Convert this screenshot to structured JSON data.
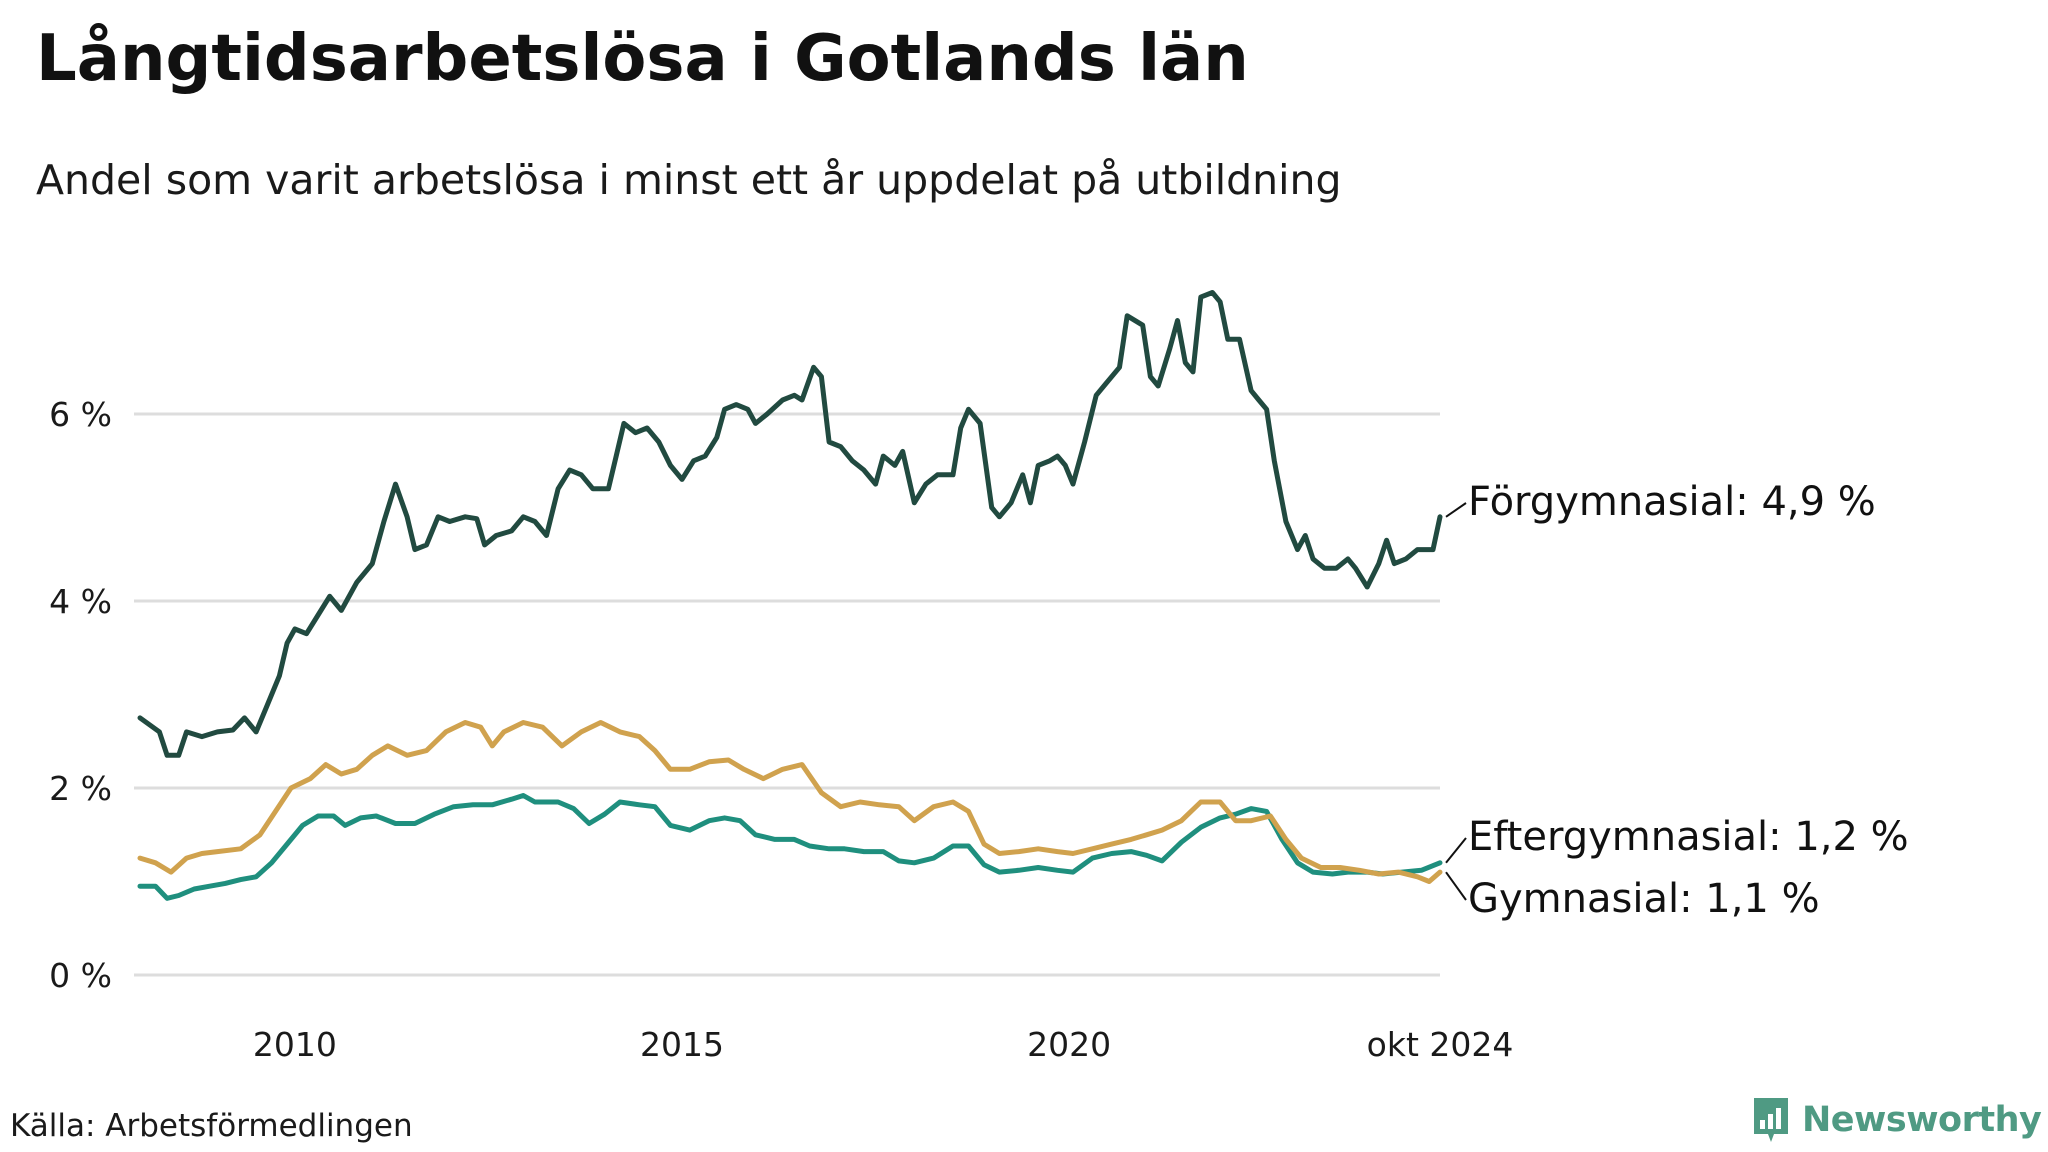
{
  "title": "Långtidsarbetslösa i Gotlands län",
  "subtitle": "Andel som varit arbetslösa i minst ett år uppdelat på utbildning",
  "source": "Källa: Arbetsförmedlingen",
  "brand": {
    "name": "Newsworthy",
    "icon": "newsworthy-logo-icon",
    "color": "#4f9a83"
  },
  "chart_data": {
    "type": "line",
    "title": "Långtidsarbetslösa i Gotlands län",
    "subtitle": "Andel som varit arbetslösa i minst ett år uppdelat på utbildning",
    "xlabel": "",
    "ylabel": "",
    "ylim": [
      0,
      7.5
    ],
    "grid": true,
    "legend": "direct labels at right end of lines",
    "y_ticks": [
      {
        "value": 0,
        "label": "0 %"
      },
      {
        "value": 2,
        "label": "2 %"
      },
      {
        "value": 4,
        "label": "4 %"
      },
      {
        "value": 6,
        "label": "6 %"
      }
    ],
    "x_ticks": [
      {
        "value": 2010,
        "label": "2010"
      },
      {
        "value": 2015,
        "label": "2015"
      },
      {
        "value": 2020,
        "label": "2020"
      },
      {
        "value": 2024.79,
        "label": "okt 2024"
      }
    ],
    "xlim": [
      2008.0,
      2024.79
    ],
    "series": [
      {
        "name": "Förgymnasial",
        "end_label": "Förgymnasial: 4,9 %",
        "color": "#214a40",
        "points": [
          [
            2008.0,
            2.75
          ],
          [
            2008.25,
            2.6
          ],
          [
            2008.35,
            2.35
          ],
          [
            2008.5,
            2.35
          ],
          [
            2008.6,
            2.6
          ],
          [
            2008.8,
            2.55
          ],
          [
            2009.0,
            2.6
          ],
          [
            2009.2,
            2.62
          ],
          [
            2009.35,
            2.75
          ],
          [
            2009.5,
            2.6
          ],
          [
            2009.65,
            2.9
          ],
          [
            2009.8,
            3.2
          ],
          [
            2009.9,
            3.55
          ],
          [
            2010.0,
            3.7
          ],
          [
            2010.15,
            3.65
          ],
          [
            2010.3,
            3.85
          ],
          [
            2010.45,
            4.05
          ],
          [
            2010.6,
            3.9
          ],
          [
            2010.8,
            4.2
          ],
          [
            2011.0,
            4.4
          ],
          [
            2011.15,
            4.85
          ],
          [
            2011.3,
            5.25
          ],
          [
            2011.45,
            4.9
          ],
          [
            2011.55,
            4.55
          ],
          [
            2011.7,
            4.6
          ],
          [
            2011.85,
            4.9
          ],
          [
            2012.0,
            4.85
          ],
          [
            2012.2,
            4.9
          ],
          [
            2012.35,
            4.88
          ],
          [
            2012.45,
            4.6
          ],
          [
            2012.6,
            4.7
          ],
          [
            2012.8,
            4.75
          ],
          [
            2012.95,
            4.9
          ],
          [
            2013.1,
            4.85
          ],
          [
            2013.25,
            4.7
          ],
          [
            2013.4,
            5.2
          ],
          [
            2013.55,
            5.4
          ],
          [
            2013.7,
            5.35
          ],
          [
            2013.85,
            5.2
          ],
          [
            2014.05,
            5.2
          ],
          [
            2014.15,
            5.55
          ],
          [
            2014.25,
            5.9
          ],
          [
            2014.4,
            5.8
          ],
          [
            2014.55,
            5.85
          ],
          [
            2014.7,
            5.7
          ],
          [
            2014.85,
            5.45
          ],
          [
            2015.0,
            5.3
          ],
          [
            2015.15,
            5.5
          ],
          [
            2015.3,
            5.55
          ],
          [
            2015.45,
            5.75
          ],
          [
            2015.55,
            6.05
          ],
          [
            2015.7,
            6.1
          ],
          [
            2015.85,
            6.05
          ],
          [
            2015.95,
            5.9
          ],
          [
            2016.1,
            6.0
          ],
          [
            2016.3,
            6.15
          ],
          [
            2016.45,
            6.2
          ],
          [
            2016.55,
            6.15
          ],
          [
            2016.7,
            6.5
          ],
          [
            2016.8,
            6.4
          ],
          [
            2016.9,
            5.7
          ],
          [
            2017.05,
            5.65
          ],
          [
            2017.2,
            5.5
          ],
          [
            2017.35,
            5.4
          ],
          [
            2017.5,
            5.25
          ],
          [
            2017.6,
            5.55
          ],
          [
            2017.75,
            5.45
          ],
          [
            2017.85,
            5.6
          ],
          [
            2018.0,
            5.05
          ],
          [
            2018.15,
            5.25
          ],
          [
            2018.3,
            5.35
          ],
          [
            2018.5,
            5.35
          ],
          [
            2018.6,
            5.85
          ],
          [
            2018.7,
            6.05
          ],
          [
            2018.85,
            5.9
          ],
          [
            2019.0,
            5.0
          ],
          [
            2019.1,
            4.9
          ],
          [
            2019.25,
            5.05
          ],
          [
            2019.4,
            5.35
          ],
          [
            2019.5,
            5.05
          ],
          [
            2019.6,
            5.45
          ],
          [
            2019.75,
            5.5
          ],
          [
            2019.85,
            5.55
          ],
          [
            2019.95,
            5.45
          ],
          [
            2020.05,
            5.25
          ],
          [
            2020.2,
            5.7
          ],
          [
            2020.35,
            6.2
          ],
          [
            2020.5,
            6.35
          ],
          [
            2020.65,
            6.5
          ],
          [
            2020.75,
            7.05
          ],
          [
            2020.95,
            6.95
          ],
          [
            2021.05,
            6.4
          ],
          [
            2021.15,
            6.3
          ],
          [
            2021.3,
            6.7
          ],
          [
            2021.4,
            7.0
          ],
          [
            2021.5,
            6.55
          ],
          [
            2021.6,
            6.45
          ],
          [
            2021.7,
            7.25
          ],
          [
            2021.85,
            7.3
          ],
          [
            2021.95,
            7.2
          ],
          [
            2022.05,
            6.8
          ],
          [
            2022.2,
            6.8
          ],
          [
            2022.35,
            6.25
          ],
          [
            2022.45,
            6.15
          ],
          [
            2022.55,
            6.05
          ],
          [
            2022.65,
            5.5
          ],
          [
            2022.8,
            4.85
          ],
          [
            2022.95,
            4.55
          ],
          [
            2023.05,
            4.7
          ],
          [
            2023.15,
            4.45
          ],
          [
            2023.3,
            4.35
          ],
          [
            2023.45,
            4.35
          ],
          [
            2023.6,
            4.45
          ],
          [
            2023.7,
            4.35
          ],
          [
            2023.85,
            4.15
          ],
          [
            2024.0,
            4.4
          ],
          [
            2024.1,
            4.65
          ],
          [
            2024.2,
            4.4
          ],
          [
            2024.35,
            4.45
          ],
          [
            2024.5,
            4.55
          ],
          [
            2024.6,
            4.55
          ],
          [
            2024.7,
            4.55
          ],
          [
            2024.79,
            4.9
          ]
        ]
      },
      {
        "name": "Eftergymnasial",
        "end_label": "Eftergymnasial: 1,2 %",
        "color": "#1f8f7e",
        "points": [
          [
            2008.0,
            0.95
          ],
          [
            2008.2,
            0.95
          ],
          [
            2008.35,
            0.82
          ],
          [
            2008.5,
            0.85
          ],
          [
            2008.7,
            0.92
          ],
          [
            2008.9,
            0.95
          ],
          [
            2009.1,
            0.98
          ],
          [
            2009.3,
            1.02
          ],
          [
            2009.5,
            1.05
          ],
          [
            2009.7,
            1.2
          ],
          [
            2009.9,
            1.4
          ],
          [
            2010.1,
            1.6
          ],
          [
            2010.3,
            1.7
          ],
          [
            2010.5,
            1.7
          ],
          [
            2010.65,
            1.6
          ],
          [
            2010.85,
            1.68
          ],
          [
            2011.05,
            1.7
          ],
          [
            2011.3,
            1.62
          ],
          [
            2011.55,
            1.62
          ],
          [
            2011.8,
            1.72
          ],
          [
            2012.05,
            1.8
          ],
          [
            2012.3,
            1.82
          ],
          [
            2012.55,
            1.82
          ],
          [
            2012.8,
            1.88
          ],
          [
            2012.95,
            1.92
          ],
          [
            2013.1,
            1.85
          ],
          [
            2013.4,
            1.85
          ],
          [
            2013.6,
            1.78
          ],
          [
            2013.8,
            1.62
          ],
          [
            2014.0,
            1.72
          ],
          [
            2014.2,
            1.85
          ],
          [
            2014.45,
            1.82
          ],
          [
            2014.65,
            1.8
          ],
          [
            2014.85,
            1.6
          ],
          [
            2015.1,
            1.55
          ],
          [
            2015.35,
            1.65
          ],
          [
            2015.55,
            1.68
          ],
          [
            2015.75,
            1.65
          ],
          [
            2015.95,
            1.5
          ],
          [
            2016.2,
            1.45
          ],
          [
            2016.45,
            1.45
          ],
          [
            2016.65,
            1.38
          ],
          [
            2016.9,
            1.35
          ],
          [
            2017.1,
            1.35
          ],
          [
            2017.35,
            1.32
          ],
          [
            2017.6,
            1.32
          ],
          [
            2017.8,
            1.22
          ],
          [
            2018.0,
            1.2
          ],
          [
            2018.25,
            1.25
          ],
          [
            2018.5,
            1.38
          ],
          [
            2018.7,
            1.38
          ],
          [
            2018.9,
            1.18
          ],
          [
            2019.1,
            1.1
          ],
          [
            2019.35,
            1.12
          ],
          [
            2019.6,
            1.15
          ],
          [
            2019.85,
            1.12
          ],
          [
            2020.05,
            1.1
          ],
          [
            2020.3,
            1.25
          ],
          [
            2020.55,
            1.3
          ],
          [
            2020.8,
            1.32
          ],
          [
            2021.0,
            1.28
          ],
          [
            2021.2,
            1.22
          ],
          [
            2021.45,
            1.42
          ],
          [
            2021.7,
            1.58
          ],
          [
            2021.95,
            1.68
          ],
          [
            2022.15,
            1.72
          ],
          [
            2022.35,
            1.78
          ],
          [
            2022.55,
            1.75
          ],
          [
            2022.75,
            1.45
          ],
          [
            2022.95,
            1.2
          ],
          [
            2023.15,
            1.1
          ],
          [
            2023.4,
            1.08
          ],
          [
            2023.6,
            1.1
          ],
          [
            2023.85,
            1.1
          ],
          [
            2024.05,
            1.08
          ],
          [
            2024.3,
            1.1
          ],
          [
            2024.55,
            1.12
          ],
          [
            2024.79,
            1.2
          ]
        ]
      },
      {
        "name": "Gymnasial",
        "end_label": "Gymnasial: 1,1 %",
        "color": "#d0a24e",
        "points": [
          [
            2008.0,
            1.25
          ],
          [
            2008.2,
            1.2
          ],
          [
            2008.4,
            1.1
          ],
          [
            2008.6,
            1.25
          ],
          [
            2008.8,
            1.3
          ],
          [
            2009.0,
            1.32
          ],
          [
            2009.3,
            1.35
          ],
          [
            2009.55,
            1.5
          ],
          [
            2009.75,
            1.75
          ],
          [
            2009.95,
            2.0
          ],
          [
            2010.2,
            2.1
          ],
          [
            2010.4,
            2.25
          ],
          [
            2010.6,
            2.15
          ],
          [
            2010.8,
            2.2
          ],
          [
            2011.0,
            2.35
          ],
          [
            2011.2,
            2.45
          ],
          [
            2011.45,
            2.35
          ],
          [
            2011.7,
            2.4
          ],
          [
            2011.95,
            2.6
          ],
          [
            2012.2,
            2.7
          ],
          [
            2012.4,
            2.65
          ],
          [
            2012.55,
            2.45
          ],
          [
            2012.7,
            2.6
          ],
          [
            2012.95,
            2.7
          ],
          [
            2013.2,
            2.65
          ],
          [
            2013.45,
            2.45
          ],
          [
            2013.7,
            2.6
          ],
          [
            2013.95,
            2.7
          ],
          [
            2014.2,
            2.6
          ],
          [
            2014.45,
            2.55
          ],
          [
            2014.65,
            2.4
          ],
          [
            2014.85,
            2.2
          ],
          [
            2015.1,
            2.2
          ],
          [
            2015.35,
            2.28
          ],
          [
            2015.6,
            2.3
          ],
          [
            2015.8,
            2.2
          ],
          [
            2016.05,
            2.1
          ],
          [
            2016.3,
            2.2
          ],
          [
            2016.55,
            2.25
          ],
          [
            2016.8,
            1.95
          ],
          [
            2017.05,
            1.8
          ],
          [
            2017.3,
            1.85
          ],
          [
            2017.55,
            1.82
          ],
          [
            2017.8,
            1.8
          ],
          [
            2018.0,
            1.65
          ],
          [
            2018.25,
            1.8
          ],
          [
            2018.5,
            1.85
          ],
          [
            2018.7,
            1.75
          ],
          [
            2018.9,
            1.4
          ],
          [
            2019.1,
            1.3
          ],
          [
            2019.35,
            1.32
          ],
          [
            2019.6,
            1.35
          ],
          [
            2019.85,
            1.32
          ],
          [
            2020.05,
            1.3
          ],
          [
            2020.3,
            1.35
          ],
          [
            2020.55,
            1.4
          ],
          [
            2020.8,
            1.45
          ],
          [
            2021.0,
            1.5
          ],
          [
            2021.2,
            1.55
          ],
          [
            2021.45,
            1.65
          ],
          [
            2021.7,
            1.85
          ],
          [
            2021.95,
            1.85
          ],
          [
            2022.15,
            1.65
          ],
          [
            2022.35,
            1.65
          ],
          [
            2022.6,
            1.7
          ],
          [
            2022.8,
            1.45
          ],
          [
            2023.0,
            1.25
          ],
          [
            2023.25,
            1.15
          ],
          [
            2023.5,
            1.15
          ],
          [
            2023.75,
            1.12
          ],
          [
            2024.0,
            1.08
          ],
          [
            2024.25,
            1.1
          ],
          [
            2024.5,
            1.05
          ],
          [
            2024.65,
            1.0
          ],
          [
            2024.79,
            1.1
          ]
        ]
      }
    ]
  }
}
